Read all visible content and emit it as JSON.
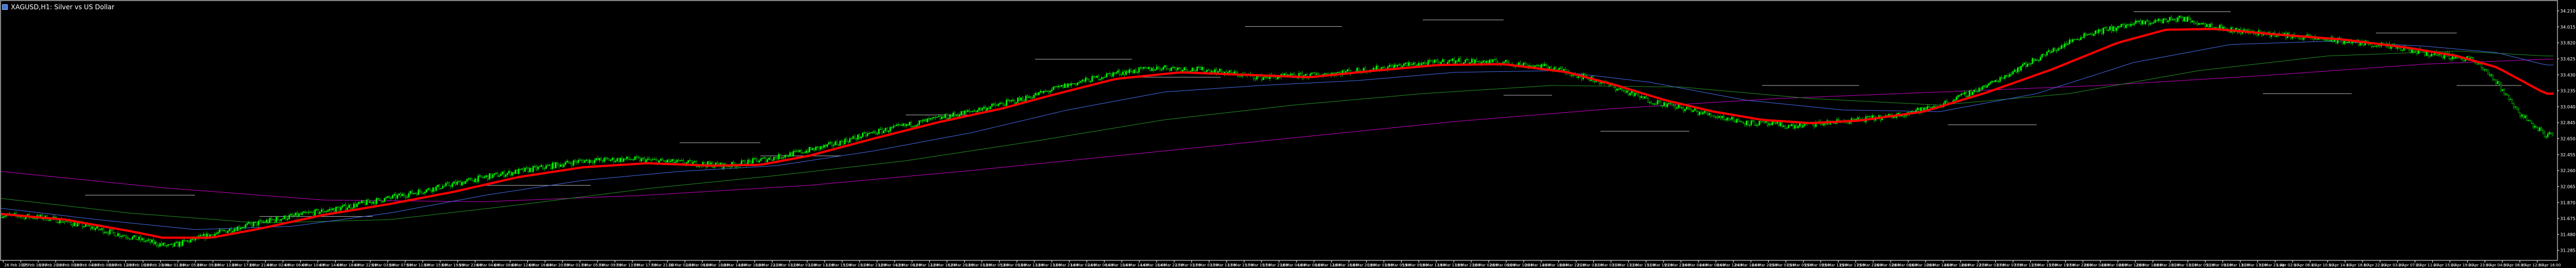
{
  "window": {
    "title": "XAGUSD,H1:  Silver vs US Dollar"
  },
  "colors": {
    "background": "#000000",
    "frame": "#ffffff",
    "bull_candle": "#00ff00",
    "bear_candle": "#000000",
    "wick": "#00ff00",
    "ma_fast": "#ff0000",
    "ma_mid": "#4169e1",
    "ma_slow": "#228b22",
    "ma_long": "#c000c0",
    "level_line": "#b0b0b0",
    "axis_text": "#ffffff"
  },
  "chart_data": {
    "type": "candlestick",
    "symbol": "XAGUSD",
    "timeframe": "H1",
    "ylim": [
      31.17,
      34.33
    ],
    "yticks": [
      "34.210",
      "34.015",
      "33.820",
      "33.625",
      "33.430",
      "33.235",
      "33.040",
      "32.845",
      "32.650",
      "32.455",
      "32.260",
      "32.065",
      "31.870",
      "31.675",
      "31.480",
      "31.285"
    ],
    "xticks": [
      "26 Feb 2025",
      "27 Feb 16:00",
      "27 Feb 20:00",
      "28 Feb 00:00",
      "28 Feb 04:00",
      "28 Feb 08:00",
      "28 Feb 12:00",
      "28 Feb 16:00",
      "28 Feb 20:00",
      "3 Mar 01:00",
      "3 Mar 05:00",
      "3 Mar 09:00",
      "3 Mar 13:00",
      "3 Mar 17:00",
      "3 Mar 21:00",
      "4 Mar 02:00",
      "4 Mar 06:00",
      "4 Mar 10:00",
      "4 Mar 14:00",
      "4 Mar 18:00",
      "4 Mar 22:00",
      "5 Mar 03:00",
      "5 Mar 07:00",
      "5 Mar 11:00",
      "5 Mar 15:00",
      "5 Mar 19:00",
      "5 Mar 23:00",
      "6 Mar 04:00",
      "6 Mar 08:00",
      "6 Mar 12:00",
      "6 Mar 16:00",
      "6 Mar 20:00",
      "7 Mar 01:00",
      "7 Mar 05:00",
      "7 Mar 09:00",
      "7 Mar 13:00",
      "7 Mar 17:00",
      "7 Mar 21:00",
      "10 Mar 02:00",
      "10 Mar 06:00",
      "10 Mar 10:00",
      "10 Mar 14:00",
      "10 Mar 18:00",
      "10 Mar 22:00",
      "11 Mar 03:00",
      "11 Mar 07:00",
      "11 Mar 11:00",
      "11 Mar 15:00",
      "11 Mar 19:00",
      "11 Mar 23:00",
      "12 Mar 04:00",
      "12 Mar 08:00",
      "12 Mar 12:00",
      "12 Mar 16:00",
      "12 Mar 20:00",
      "13 Mar 01:00",
      "13 Mar 05:00",
      "13 Mar 09:00",
      "13 Mar 13:00",
      "13 Mar 17:00",
      "13 Mar 21:00",
      "14 Mar 02:00",
      "14 Mar 06:00",
      "14 Mar 10:00",
      "14 Mar 14:00",
      "14 Mar 18:00",
      "14 Mar 22:00",
      "17 Mar 03:00",
      "17 Mar 07:00",
      "17 Mar 11:00",
      "17 Mar 15:00",
      "17 Mar 19:00",
      "17 Mar 23:00",
      "18 Mar 04:00",
      "18 Mar 08:00",
      "18 Mar 12:00",
      "18 Mar 16:00",
      "18 Mar 20:00",
      "19 Mar 01:00",
      "19 Mar 05:00",
      "19 Mar 09:00",
      "19 Mar 13:00",
      "19 Mar 17:00",
      "19 Mar 21:00",
      "20 Mar 02:00",
      "20 Mar 06:00",
      "20 Mar 10:00",
      "20 Mar 14:00",
      "20 Mar 18:00",
      "20 Mar 22:00",
      "21 Mar 03:00",
      "21 Mar 07:00",
      "21 Mar 11:00",
      "21 Mar 15:00",
      "21 Mar 19:00",
      "21 Mar 23:00",
      "24 Mar 04:00",
      "24 Mar 08:00",
      "24 Mar 12:00",
      "24 Mar 16:00",
      "24 Mar 20:00",
      "25 Mar 01:00",
      "25 Mar 05:00",
      "25 Mar 09:00",
      "25 Mar 13:00",
      "25 Mar 17:00",
      "25 Mar 21:00",
      "26 Mar 02:00",
      "26 Mar 06:00",
      "26 Mar 10:00",
      "26 Mar 14:00",
      "26 Mar 18:00",
      "26 Mar 22:00",
      "27 Mar 03:00",
      "27 Mar 07:00",
      "27 Mar 11:00",
      "27 Mar 15:00",
      "27 Mar 19:00",
      "27 Mar 23:00",
      "28 Mar 04:00",
      "28 Mar 08:00",
      "28 Mar 12:00",
      "28 Mar 16:00",
      "28 Mar 20:00",
      "31 Mar 01:00",
      "31 Mar 05:00",
      "31 Mar 09:00",
      "31 Mar 13:00",
      "31 Mar 17:00",
      "31 Mar 21:00",
      "1 Apr 02:00",
      "1 Apr 06:00",
      "1 Apr 10:00",
      "1 Apr 14:00",
      "1 Apr 18:00",
      "1 Apr 22:00",
      "2 Apr 03:00",
      "2 Apr 07:00",
      "2 Apr 11:00",
      "2 Apr 15:00",
      "2 Apr 19:00",
      "2 Apr 23:00",
      "3 Apr 04:00",
      "3 Apr 08:00",
      "3 Apr 12:00",
      "3 Apr 16:00"
    ],
    "price_path": [
      [
        0,
        31.72
      ],
      [
        30,
        31.68
      ],
      [
        60,
        31.55
      ],
      [
        90,
        31.4
      ],
      [
        105,
        31.33
      ],
      [
        120,
        31.42
      ],
      [
        150,
        31.58
      ],
      [
        180,
        31.7
      ],
      [
        210,
        31.8
      ],
      [
        240,
        31.92
      ],
      [
        270,
        32.05
      ],
      [
        300,
        32.18
      ],
      [
        330,
        32.28
      ],
      [
        360,
        32.38
      ],
      [
        390,
        32.4
      ],
      [
        420,
        32.36
      ],
      [
        450,
        32.32
      ],
      [
        480,
        32.42
      ],
      [
        510,
        32.55
      ],
      [
        540,
        32.72
      ],
      [
        570,
        32.85
      ],
      [
        600,
        32.98
      ],
      [
        630,
        33.12
      ],
      [
        660,
        33.3
      ],
      [
        690,
        33.45
      ],
      [
        720,
        33.52
      ],
      [
        750,
        33.48
      ],
      [
        780,
        33.4
      ],
      [
        810,
        33.42
      ],
      [
        840,
        33.48
      ],
      [
        870,
        33.55
      ],
      [
        900,
        33.6
      ],
      [
        930,
        33.58
      ],
      [
        960,
        33.52
      ],
      [
        990,
        33.35
      ],
      [
        1020,
        33.12
      ],
      [
        1050,
        32.98
      ],
      [
        1080,
        32.85
      ],
      [
        1110,
        32.8
      ],
      [
        1140,
        32.86
      ],
      [
        1170,
        32.92
      ],
      [
        1200,
        33.05
      ],
      [
        1230,
        33.3
      ],
      [
        1260,
        33.62
      ],
      [
        1290,
        33.92
      ],
      [
        1320,
        34.05
      ],
      [
        1350,
        34.12
      ],
      [
        1380,
        33.98
      ],
      [
        1410,
        33.92
      ],
      [
        1440,
        33.86
      ],
      [
        1470,
        33.8
      ],
      [
        1500,
        33.7
      ],
      [
        1530,
        33.62
      ],
      [
        1545,
        33.35
      ],
      [
        1560,
        32.95
      ],
      [
        1575,
        32.7
      ]
    ],
    "ma_fast": [
      [
        0,
        31.73
      ],
      [
        40,
        31.66
      ],
      [
        80,
        31.52
      ],
      [
        100,
        31.44
      ],
      [
        130,
        31.44
      ],
      [
        160,
        31.55
      ],
      [
        200,
        31.72
      ],
      [
        240,
        31.85
      ],
      [
        280,
        32.0
      ],
      [
        320,
        32.18
      ],
      [
        360,
        32.3
      ],
      [
        400,
        32.35
      ],
      [
        440,
        32.32
      ],
      [
        470,
        32.33
      ],
      [
        500,
        32.44
      ],
      [
        540,
        32.65
      ],
      [
        580,
        32.85
      ],
      [
        620,
        33.02
      ],
      [
        650,
        33.18
      ],
      [
        690,
        33.38
      ],
      [
        730,
        33.46
      ],
      [
        770,
        33.43
      ],
      [
        810,
        33.4
      ],
      [
        850,
        33.48
      ],
      [
        890,
        33.55
      ],
      [
        930,
        33.56
      ],
      [
        970,
        33.46
      ],
      [
        1000,
        33.3
      ],
      [
        1030,
        33.12
      ],
      [
        1060,
        32.98
      ],
      [
        1090,
        32.88
      ],
      [
        1120,
        32.84
      ],
      [
        1150,
        32.87
      ],
      [
        1190,
        32.98
      ],
      [
        1230,
        33.22
      ],
      [
        1270,
        33.5
      ],
      [
        1310,
        33.82
      ],
      [
        1340,
        33.98
      ],
      [
        1370,
        33.99
      ],
      [
        1410,
        33.92
      ],
      [
        1450,
        33.86
      ],
      [
        1490,
        33.76
      ],
      [
        1520,
        33.66
      ],
      [
        1545,
        33.52
      ],
      [
        1575,
        33.2
      ]
    ],
    "ma_mid": [
      [
        0,
        31.8
      ],
      [
        60,
        31.66
      ],
      [
        120,
        31.54
      ],
      [
        180,
        31.58
      ],
      [
        240,
        31.74
      ],
      [
        300,
        31.96
      ],
      [
        360,
        32.14
      ],
      [
        420,
        32.25
      ],
      [
        480,
        32.32
      ],
      [
        540,
        32.5
      ],
      [
        600,
        32.72
      ],
      [
        660,
        33.0
      ],
      [
        720,
        33.22
      ],
      [
        780,
        33.3
      ],
      [
        840,
        33.36
      ],
      [
        900,
        33.46
      ],
      [
        960,
        33.48
      ],
      [
        1020,
        33.34
      ],
      [
        1080,
        33.12
      ],
      [
        1140,
        33.0
      ],
      [
        1200,
        32.98
      ],
      [
        1260,
        33.2
      ],
      [
        1320,
        33.58
      ],
      [
        1380,
        33.8
      ],
      [
        1440,
        33.84
      ],
      [
        1500,
        33.78
      ],
      [
        1545,
        33.7
      ],
      [
        1575,
        33.55
      ]
    ],
    "ma_slow": [
      [
        0,
        31.92
      ],
      [
        80,
        31.74
      ],
      [
        160,
        31.62
      ],
      [
        240,
        31.66
      ],
      [
        320,
        31.84
      ],
      [
        400,
        32.04
      ],
      [
        480,
        32.2
      ],
      [
        560,
        32.38
      ],
      [
        640,
        32.62
      ],
      [
        720,
        32.88
      ],
      [
        800,
        33.06
      ],
      [
        880,
        33.2
      ],
      [
        960,
        33.3
      ],
      [
        1040,
        33.28
      ],
      [
        1120,
        33.14
      ],
      [
        1200,
        33.06
      ],
      [
        1280,
        33.2
      ],
      [
        1360,
        33.48
      ],
      [
        1440,
        33.66
      ],
      [
        1520,
        33.72
      ],
      [
        1575,
        33.66
      ]
    ],
    "ma_long": [
      [
        0,
        32.25
      ],
      [
        100,
        32.05
      ],
      [
        200,
        31.9
      ],
      [
        300,
        31.88
      ],
      [
        400,
        31.96
      ],
      [
        500,
        32.08
      ],
      [
        600,
        32.26
      ],
      [
        700,
        32.46
      ],
      [
        800,
        32.66
      ],
      [
        900,
        32.86
      ],
      [
        1000,
        33.02
      ],
      [
        1100,
        33.14
      ],
      [
        1200,
        33.22
      ],
      [
        1300,
        33.3
      ],
      [
        1400,
        33.42
      ],
      [
        1500,
        33.56
      ],
      [
        1575,
        33.62
      ]
    ],
    "level_lines": [
      [
        52,
        120,
        31.96
      ],
      [
        160,
        230,
        31.7
      ],
      [
        300,
        365,
        32.08
      ],
      [
        420,
        470,
        32.6
      ],
      [
        470,
        520,
        32.44
      ],
      [
        640,
        700,
        33.62
      ],
      [
        700,
        755,
        33.4
      ],
      [
        770,
        830,
        34.02
      ],
      [
        880,
        930,
        34.1
      ],
      [
        990,
        1045,
        32.74
      ],
      [
        1090,
        1150,
        33.3
      ],
      [
        1205,
        1260,
        32.82
      ],
      [
        1320,
        1380,
        34.2
      ],
      [
        1400,
        1455,
        33.2
      ],
      [
        1470,
        1520,
        33.94
      ],
      [
        1520,
        1560,
        33.3
      ],
      [
        930,
        960,
        33.18
      ],
      [
        560,
        600,
        32.94
      ]
    ]
  }
}
